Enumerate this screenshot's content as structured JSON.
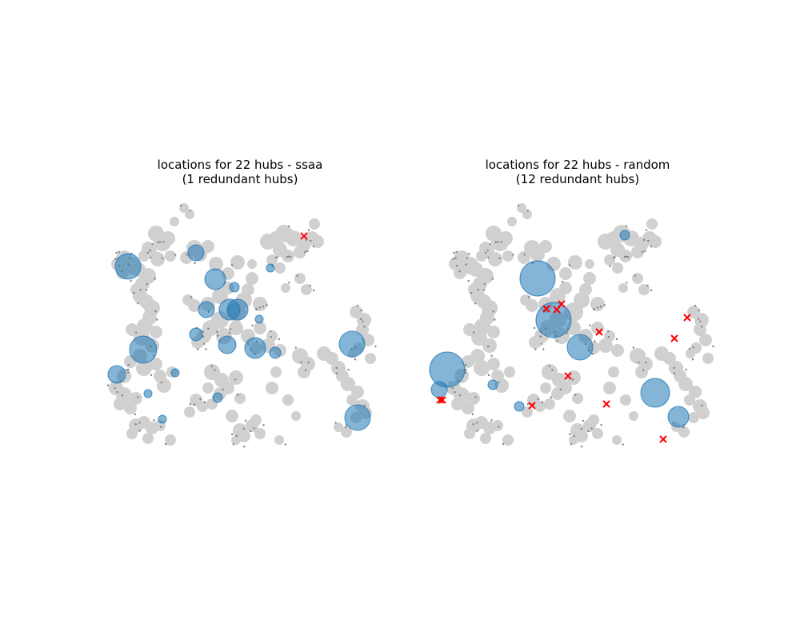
{
  "chart_data": [
    {
      "type": "scatter",
      "title_line1": "locations for 22 hubs - ssaa",
      "title_line2": "(1 redundant hubs)",
      "xlim": [
        0,
        330
      ],
      "ylim": [
        0,
        310
      ],
      "grid": false,
      "axes_visible": false,
      "colors": {
        "points": "#d0d0d0",
        "hub": "#1f77b4",
        "demand": "#808080",
        "redundant": "#ff0000"
      },
      "hubs": [
        {
          "x": 25,
          "y": 227,
          "r": 16
        },
        {
          "x": 110,
          "y": 244,
          "r": 10
        },
        {
          "x": 134,
          "y": 211,
          "r": 13
        },
        {
          "x": 158,
          "y": 201,
          "r": 6
        },
        {
          "x": 203,
          "y": 225,
          "r": 5
        },
        {
          "x": 123,
          "y": 173,
          "r": 10
        },
        {
          "x": 152,
          "y": 173,
          "r": 13
        },
        {
          "x": 162,
          "y": 173,
          "r": 13
        },
        {
          "x": 189,
          "y": 161,
          "r": 5
        },
        {
          "x": 110,
          "y": 142,
          "r": 8
        },
        {
          "x": 149,
          "y": 129,
          "r": 11
        },
        {
          "x": 184,
          "y": 125,
          "r": 13
        },
        {
          "x": 44,
          "y": 123,
          "r": 17
        },
        {
          "x": 209,
          "y": 119,
          "r": 7
        },
        {
          "x": 305,
          "y": 130,
          "r": 16
        },
        {
          "x": 11,
          "y": 92,
          "r": 11
        },
        {
          "x": 84,
          "y": 94,
          "r": 5
        },
        {
          "x": 50,
          "y": 68,
          "r": 5
        },
        {
          "x": 137,
          "y": 63,
          "r": 6
        },
        {
          "x": 68,
          "y": 36,
          "r": 5
        },
        {
          "x": 312,
          "y": 38,
          "r": 16
        }
      ],
      "redundant_hubs": [
        {
          "x": 245,
          "y": 265
        }
      ]
    },
    {
      "type": "scatter",
      "title_line1": "locations for 22 hubs - random",
      "title_line2": "(12 redundant hubs)",
      "xlim": [
        0,
        330
      ],
      "ylim": [
        0,
        310
      ],
      "grid": false,
      "axes_visible": false,
      "colors": {
        "points": "#d0d0d0",
        "hub": "#1f77b4",
        "demand": "#808080",
        "redundant": "#ff0000"
      },
      "hubs": [
        {
          "x": 224,
          "y": 266,
          "r": 6
        },
        {
          "x": 115,
          "y": 212,
          "r": 22
        },
        {
          "x": 135,
          "y": 160,
          "r": 22
        },
        {
          "x": 168,
          "y": 126,
          "r": 16
        },
        {
          "x": 2,
          "y": 98,
          "r": 22
        },
        {
          "x": 59,
          "y": 79,
          "r": 6
        },
        {
          "x": -8,
          "y": 73,
          "r": 10
        },
        {
          "x": 262,
          "y": 69,
          "r": 18
        },
        {
          "x": 92,
          "y": 52,
          "r": 6
        },
        {
          "x": 291,
          "y": 39,
          "r": 13
        }
      ],
      "redundant_hubs": [
        {
          "x": 126,
          "y": 174
        },
        {
          "x": 139,
          "y": 173
        },
        {
          "x": 145,
          "y": 180
        },
        {
          "x": 192,
          "y": 145
        },
        {
          "x": 302,
          "y": 163
        },
        {
          "x": 286,
          "y": 137
        },
        {
          "x": 153,
          "y": 90
        },
        {
          "x": -7,
          "y": 60
        },
        {
          "x": -4,
          "y": 60
        },
        {
          "x": 108,
          "y": 53
        },
        {
          "x": 201,
          "y": 55
        },
        {
          "x": 272,
          "y": 11
        }
      ]
    }
  ]
}
